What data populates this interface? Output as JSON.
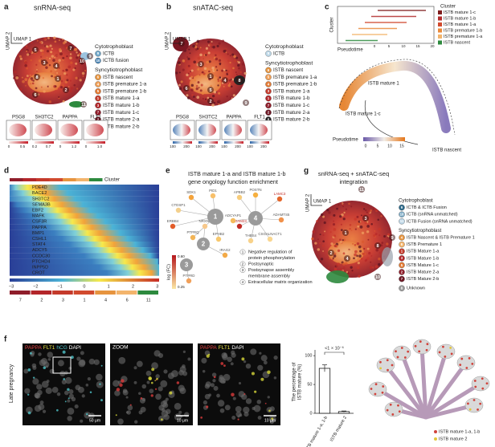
{
  "panels": {
    "a": {
      "label": "a",
      "title": "snRNA-seq",
      "umap_x": "UMAP 1",
      "umap_y": "UMAP 2",
      "cluster_labels": [
        "5",
        "6",
        "1",
        "4",
        "3",
        "7",
        "2",
        "8",
        "9",
        "10",
        "11"
      ],
      "legend": [
        {
          "heading": "Cytotrophoblast",
          "items": [
            {
              "num": "9",
              "label": "ICTB"
            },
            {
              "num": "10",
              "label": "ICTB fusion"
            }
          ]
        },
        {
          "heading": "Syncytiotrophoblast",
          "items": [
            {
              "num": "6",
              "label": "ISTB nascent"
            },
            {
              "num": "4",
              "label": "ISTB premature 1-a"
            },
            {
              "num": "5",
              "label": "ISTB premature 1-b"
            },
            {
              "num": "1",
              "label": "ISTB mature 1-a"
            },
            {
              "num": "3",
              "label": "ISTB mature 1-b"
            },
            {
              "num": "7",
              "label": "ISTB mature 1-c"
            },
            {
              "num": "2",
              "label": "ISTB mature 2-a"
            },
            {
              "num": "8",
              "label": "ISTB mature 2-b"
            }
          ]
        }
      ],
      "genes": [
        "PSG8",
        "SH3TC2",
        "PAPPA",
        "FLT1"
      ],
      "gene_scales": [
        [
          "0",
          "0.5"
        ],
        [
          "0.2",
          "0.7"
        ],
        [
          "0",
          "1.2"
        ],
        [
          "0",
          "1.0"
        ]
      ]
    },
    "b": {
      "label": "b",
      "title": "snATAC-seq",
      "umap_x": "UMAP 1",
      "umap_y": "UMAP 2",
      "cluster_labels": [
        "7",
        "3",
        "1",
        "4",
        "5",
        "8",
        "2",
        "6",
        "9"
      ],
      "legend": [
        {
          "heading": "Cytotrophoblast",
          "items": [
            {
              "num": "9",
              "label": "ICTB"
            }
          ]
        },
        {
          "heading": "Syncytiotrophoblast",
          "items": [
            {
              "num": "6",
              "label": "ISTB nascent"
            },
            {
              "num": "5",
              "label": "ISTB premature 1-a"
            },
            {
              "num": "4",
              "label": "ISTB premature 1-b"
            },
            {
              "num": "3",
              "label": "ISTB mature 1-a"
            },
            {
              "num": "1",
              "label": "ISTB mature 1-b"
            },
            {
              "num": "7",
              "label": "ISTB mature 1-c"
            },
            {
              "num": "2",
              "label": "ISTB mature 2-a"
            },
            {
              "num": "8",
              "label": "ISTB mature 2-b"
            }
          ]
        }
      ],
      "genes": [
        "PSG8",
        "SH3TC2",
        "PAPPA",
        "FLT1"
      ],
      "gene_scales": [
        [
          "100",
          "200"
        ],
        [
          "100",
          "200"
        ],
        [
          "100",
          "200"
        ],
        [
          "100",
          "200"
        ]
      ]
    },
    "c": {
      "label": "c",
      "legend_title": "Cluster",
      "legend": [
        "ISTB mature 1-c",
        "ISTB mature 1-b",
        "ISTB mature 1-a",
        "ISTB premature 1-b",
        "ISTB premature 1-a",
        "ISTB nascent"
      ],
      "y_label": "Cluster",
      "x_label": "Pseudotime",
      "x_ticks": [
        "0",
        "5",
        "10",
        "15",
        "20"
      ],
      "trajectory_labels": [
        "ISTB mature 1",
        "ISTB mature 1-c",
        "ISTB nascent"
      ],
      "colorbar_title": "Pseudotime",
      "colorbar_ticks": [
        "0",
        "5",
        "10",
        "15"
      ]
    },
    "d": {
      "label": "d",
      "cluster_title": "Cluster",
      "genes": [
        "PDE4D",
        "BACE2",
        "SH3TC2",
        "SEMA3B",
        "EBF2",
        "MAFK",
        "CSF3R",
        "PAPPA",
        "BMP1",
        "CSHL1",
        "STAT4",
        "ADCY5",
        "CCDC30",
        "PTCHD4",
        "INPP5D",
        "CROT"
      ],
      "scale_ticks": [
        "−3",
        "−2",
        "−1",
        "0",
        "1",
        "2",
        "3"
      ],
      "clusters": [
        "7",
        "2",
        "3",
        "1",
        "4",
        "6",
        "11"
      ]
    },
    "e": {
      "label": "e",
      "title_lines": [
        "ISTB mature 1-a and  ISTB mature 1-b",
        "gene ongology function enrichment"
      ],
      "nodes": [
        "1",
        "2",
        "3",
        "4"
      ],
      "genes": [
        "SDK1",
        "PID1",
        "CTDSP1",
        "ERBB4",
        "PTPRQ",
        "EPHB2",
        "PTPRD",
        "APBB2",
        "POSTN",
        "LAMC3",
        "ADAM23",
        "ADAMTS5",
        "THBS4",
        "CSGALNACT1",
        "ADCYAP1",
        "IRAG2",
        "NRXN1"
      ],
      "colorbar_title": "log (FC)",
      "colorbar_ticks": [
        "0.60",
        "0.25"
      ],
      "terms": [
        {
          "num": "1",
          "lines": [
            "Negative regulation of",
            "protein phosphorylation"
          ]
        },
        {
          "num": "2",
          "lines": [
            "Postsynaptic"
          ]
        },
        {
          "num": "3",
          "lines": [
            "Postsynapse assembly",
            "membrane assembly"
          ]
        },
        {
          "num": "4",
          "lines": [
            "Extracellular matrix organization"
          ]
        }
      ]
    },
    "g": {
      "label": "g",
      "title_lines": [
        "snRNA-seq + snATAC-seq",
        "integration"
      ],
      "umap_x": "UMAP 1",
      "umap_y": "UMAP 2",
      "cluster_labels": [
        "11",
        "1",
        "3",
        "2",
        "4",
        "8",
        "9",
        "10"
      ],
      "legend": [
        {
          "heading": "Cytotrophoblast",
          "items": [
            {
              "num": "9",
              "label": "ICTB & ICTB Fusion"
            },
            {
              "num": "10",
              "label": "ICTB (snRNA unmatched)"
            },
            {
              "num": "11",
              "label": "ICTB Fusion (snRNA unmatched)"
            }
          ]
        },
        {
          "heading": "Syncytiotrophoblast",
          "items": [
            {
              "num": "4",
              "label": "ISTB Nascent & ISTB Premature 1"
            },
            {
              "num": "6",
              "label": "ISTB Premature 1"
            },
            {
              "num": "1",
              "label": "ISTB Mature 1-a"
            },
            {
              "num": "3",
              "label": "ISTB Mature 1-b"
            },
            {
              "num": "5",
              "label": "ISTB Mature 1-c"
            },
            {
              "num": "2",
              "label": "ISTB Mature 2-a"
            },
            {
              "num": "7",
              "label": "ISTB Mature 2-b"
            }
          ]
        },
        {
          "heading": "",
          "items": [
            {
              "num": "8",
              "label": "Unknown"
            }
          ]
        }
      ]
    },
    "f": {
      "label": "f",
      "row_label": "Late pregnancy",
      "channels_1": [
        "PAPPA",
        "FLT1",
        "hCG",
        "DAPI"
      ],
      "zoom": "ZOOM",
      "channels_3": [
        "PAPPA",
        "FLT1",
        "DAPI"
      ],
      "scale_bars": [
        "50 μm",
        "10 μm",
        "10 μm"
      ],
      "legend": [
        "ISTB mature 1-a, 1-b",
        "ISTB mature 2"
      ]
    }
  },
  "chart_data": {
    "type": "bar",
    "y_label_lines": [
      "The percentage of",
      "ISTB mature (%)"
    ],
    "categories": [
      "ISTB mature 1-a, 1-b",
      "ISTB mature 2"
    ],
    "values": [
      78,
      3
    ],
    "errors": [
      6,
      1
    ],
    "ylim": [
      0,
      110
    ],
    "yticks": [
      0,
      50,
      100
    ],
    "annotation": "<1 × 10⁻⁶",
    "color": "#1a1a1a"
  }
}
